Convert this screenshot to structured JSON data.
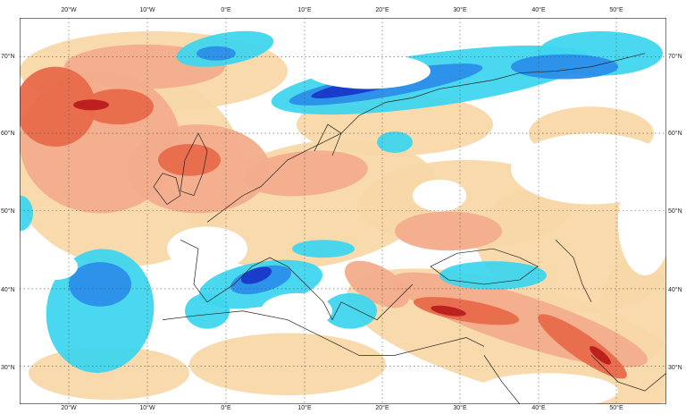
{
  "map": {
    "longitude_labels": [
      "20°W",
      "10°W",
      "0°E",
      "10°E",
      "20°E",
      "30°E",
      "40°E",
      "50°E"
    ],
    "latitude_labels": [
      "70°N",
      "60°N",
      "50°N",
      "40°N",
      "30°N"
    ],
    "grid": "dotted",
    "palette": {
      "warm_1": "#f8d8a8",
      "warm_2": "#f2ad8c",
      "warm_3": "#e86a4a",
      "warm_4": "#b81c1c",
      "cool_1": "#3fd6ee",
      "cool_2": "#2c8ee8",
      "cool_3": "#1838c8",
      "coast": "#222222"
    }
  }
}
